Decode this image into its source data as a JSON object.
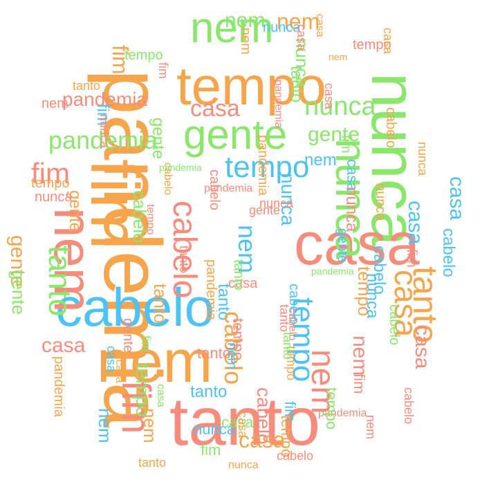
{
  "colors": {
    "orange": "#f6a54c",
    "salmon": "#f88c7c",
    "green": "#8ae76b",
    "blue": "#4cc3f2"
  },
  "words": [
    {
      "text": "pandemia",
      "color": "orange"
    },
    {
      "text": "tanto",
      "color": "salmon"
    },
    {
      "text": "nem",
      "color": "orange"
    },
    {
      "text": "nunca",
      "color": "green"
    },
    {
      "text": "casa",
      "color": "salmon"
    },
    {
      "text": "tempo",
      "color": "orange"
    },
    {
      "text": "cabelo",
      "color": "blue"
    },
    {
      "text": "fim",
      "color": "orange"
    },
    {
      "text": "fim",
      "color": "salmon"
    },
    {
      "text": "nem",
      "color": "green"
    },
    {
      "text": "nem",
      "color": "salmon"
    },
    {
      "text": "gente",
      "color": "green"
    },
    {
      "text": "nunca",
      "color": "green"
    },
    {
      "text": "tanto",
      "color": "orange"
    },
    {
      "text": "tanto",
      "color": "green"
    },
    {
      "text": "casa",
      "color": "orange"
    },
    {
      "text": "casa",
      "color": "blue"
    },
    {
      "text": "tempo",
      "color": "blue"
    },
    {
      "text": "tempo",
      "color": "blue"
    },
    {
      "text": "cabelo",
      "color": "salmon"
    },
    {
      "text": "pandemia",
      "color": "green"
    },
    {
      "text": "nunca",
      "color": "green"
    },
    {
      "text": "nunca",
      "color": "blue"
    },
    {
      "text": "nem",
      "color": "salmon"
    },
    {
      "text": "nem",
      "color": "blue"
    },
    {
      "text": "nem",
      "color": "green"
    },
    {
      "text": "fim",
      "color": "salmon"
    },
    {
      "text": "gente",
      "color": "green"
    },
    {
      "text": "tanto",
      "color": "blue"
    },
    {
      "text": "pandemia",
      "color": "orange"
    },
    {
      "text": "cabelo",
      "color": "blue"
    },
    {
      "text": "tanto",
      "color": "blue"
    },
    {
      "text": "casa",
      "color": "salmon"
    },
    {
      "text": "casa",
      "color": "blue"
    },
    {
      "text": "cabelo",
      "color": "orange"
    },
    {
      "text": "casa",
      "color": "salmon"
    },
    {
      "text": "tempo",
      "color": "orange"
    },
    {
      "text": "nunca",
      "color": "blue"
    },
    {
      "text": "gente",
      "color": "orange"
    },
    {
      "text": "casa",
      "color": "orange"
    },
    {
      "text": "casa",
      "color": "salmon"
    },
    {
      "text": "cabelo",
      "color": "green"
    },
    {
      "text": "tempo",
      "color": "green"
    },
    {
      "text": "nem",
      "color": "orange"
    },
    {
      "text": "tanto",
      "color": "green"
    },
    {
      "text": "pandemia",
      "color": "salmon"
    },
    {
      "text": "fim",
      "color": "orange"
    },
    {
      "text": "nunca",
      "color": "green"
    },
    {
      "text": "nem",
      "color": "blue"
    },
    {
      "text": "nunca",
      "color": "blue"
    },
    {
      "text": "gente",
      "color": "green"
    },
    {
      "text": "cabelo",
      "color": "blue"
    },
    {
      "text": "gente",
      "color": "orange"
    },
    {
      "text": "cabelo",
      "color": "salmon"
    },
    {
      "text": "fim",
      "color": "green"
    },
    {
      "text": "fim",
      "color": "blue"
    },
    {
      "text": "tanto",
      "color": "salmon"
    },
    {
      "text": "nem",
      "color": "salmon"
    },
    {
      "text": "casa",
      "color": "salmon"
    },
    {
      "text": "pandemia",
      "color": "salmon"
    },
    {
      "text": "tempo",
      "color": "salmon"
    },
    {
      "text": "casa",
      "color": "orange"
    },
    {
      "text": "nunca",
      "color": "blue"
    },
    {
      "text": "tempo",
      "color": "orange"
    },
    {
      "text": "nem",
      "color": "orange"
    },
    {
      "text": "casa",
      "color": "blue"
    },
    {
      "text": "pandemia",
      "color": "green"
    },
    {
      "text": "gente",
      "color": "green"
    },
    {
      "text": "fim",
      "color": "salmon"
    },
    {
      "text": "tempo",
      "color": "salmon"
    },
    {
      "text": "nem",
      "color": "salmon"
    },
    {
      "text": "cabelo",
      "color": "green"
    },
    {
      "text": "casa",
      "color": "orange"
    },
    {
      "text": "nunca",
      "color": "salmon"
    },
    {
      "text": "tempo",
      "color": "green"
    },
    {
      "text": "tanto",
      "color": "green"
    },
    {
      "text": "cabelo",
      "color": "salmon"
    },
    {
      "text": "pandemia",
      "color": "orange"
    },
    {
      "text": "fim",
      "color": "blue"
    },
    {
      "text": "nem",
      "color": "blue"
    },
    {
      "text": "gente",
      "color": "salmon"
    },
    {
      "text": "casa",
      "color": "green"
    },
    {
      "text": "tanto",
      "color": "orange"
    },
    {
      "text": "cabelo",
      "color": "blue"
    },
    {
      "text": "tempo",
      "color": "orange"
    },
    {
      "text": "nunca",
      "color": "orange"
    },
    {
      "text": "nunca",
      "color": "salmon"
    },
    {
      "text": "fim",
      "color": "green"
    },
    {
      "text": "casa",
      "color": "orange"
    },
    {
      "text": "pandemia",
      "color": "salmon"
    },
    {
      "text": "gente",
      "color": "blue"
    },
    {
      "text": "tempo",
      "color": "salmon"
    },
    {
      "text": "nem",
      "color": "orange"
    },
    {
      "text": "tanto",
      "color": "salmon"
    },
    {
      "text": "cabelo",
      "color": "salmon"
    },
    {
      "text": "fim",
      "color": "salmon"
    },
    {
      "text": "casa",
      "color": "salmon"
    },
    {
      "text": "casa",
      "color": "green"
    },
    {
      "text": "pandemia",
      "color": "salmon"
    },
    {
      "text": "nunca",
      "color": "salmon"
    },
    {
      "text": "tanto",
      "color": "orange"
    },
    {
      "text": "cabelo",
      "color": "orange"
    },
    {
      "text": "fim",
      "color": "salmon"
    },
    {
      "text": "nem",
      "color": "salmon"
    },
    {
      "text": "casa",
      "color": "orange"
    },
    {
      "text": "nunca",
      "color": "orange"
    },
    {
      "text": "cabelo",
      "color": "salmon"
    },
    {
      "text": "tanto",
      "color": "orange"
    },
    {
      "text": "pandemia",
      "color": "green"
    },
    {
      "text": "casa",
      "color": "blue"
    },
    {
      "text": "gente",
      "color": "salmon"
    },
    {
      "text": "nem",
      "color": "blue"
    },
    {
      "text": "fim",
      "color": "green"
    },
    {
      "text": "nunca",
      "color": "salmon"
    },
    {
      "text": "tempo",
      "color": "orange"
    },
    {
      "text": "casa",
      "color": "salmon"
    },
    {
      "text": "tanto",
      "color": "green"
    },
    {
      "text": "cabelo",
      "color": "orange"
    },
    {
      "text": "nem",
      "color": "orange"
    },
    {
      "text": "tanto",
      "color": "salmon"
    },
    {
      "text": "nunca",
      "color": "orange"
    },
    {
      "text": "cabelo",
      "color": "salmon"
    },
    {
      "text": "pandemia",
      "color": "orange"
    },
    {
      "text": "tempo",
      "color": "green"
    }
  ]
}
